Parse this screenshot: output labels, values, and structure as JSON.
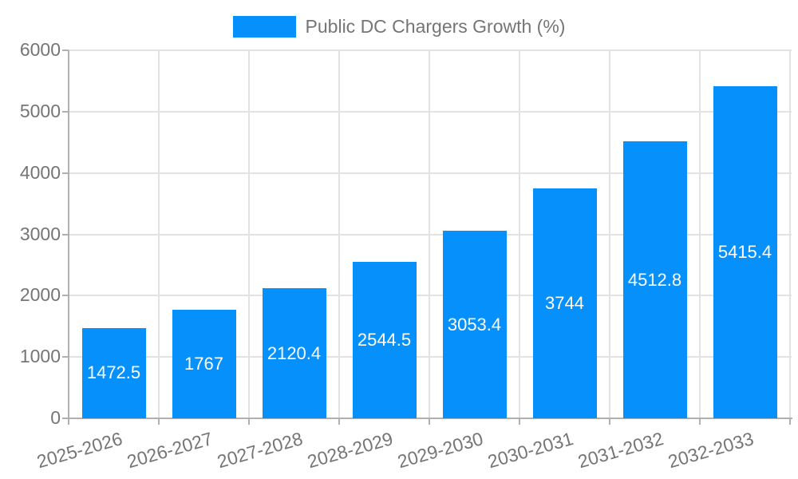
{
  "chart_data": {
    "type": "bar",
    "title": "",
    "legend": [
      "Public DC Chargers Growth (%)"
    ],
    "legend_position": "top-center",
    "categories": [
      "2025-2026",
      "2026-2027",
      "2027-2028",
      "2028-2029",
      "2029-2030",
      "2030-2031",
      "2031-2032",
      "2032-2033"
    ],
    "series": [
      {
        "name": "Public DC Chargers Growth (%)",
        "values": [
          1472.5,
          1767,
          2120.4,
          2544.5,
          3053.4,
          3744,
          4512.8,
          5415.4
        ],
        "value_labels": [
          "1472.5",
          "1767",
          "2120.4",
          "2544.5",
          "3053.4",
          "3744",
          "4512.8",
          "5415.4"
        ]
      }
    ],
    "xlabel": "",
    "ylabel": "",
    "ylim": [
      0,
      6000
    ],
    "yticks": [
      0,
      1000,
      2000,
      3000,
      4000,
      5000,
      6000
    ],
    "ytick_labels": [
      "0",
      "1000",
      "2000",
      "3000",
      "4000",
      "5000",
      "6000"
    ],
    "grid": true,
    "colors": {
      "bar": "#0590FB",
      "axis_text": "#757575",
      "grid_line": "#e2e2e2",
      "axis_line": "#b0b0b0",
      "value_label": "#ffffff",
      "background": "#ffffff"
    }
  }
}
